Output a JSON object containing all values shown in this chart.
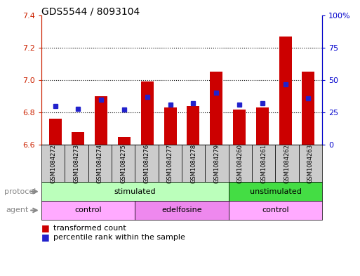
{
  "title": "GDS5544 / 8093104",
  "samples": [
    "GSM1084272",
    "GSM1084273",
    "GSM1084274",
    "GSM1084275",
    "GSM1084276",
    "GSM1084277",
    "GSM1084278",
    "GSM1084279",
    "GSM1084260",
    "GSM1084261",
    "GSM1084262",
    "GSM1084263"
  ],
  "transformed_count": [
    6.76,
    6.68,
    6.9,
    6.65,
    6.99,
    6.83,
    6.84,
    7.05,
    6.82,
    6.83,
    7.27,
    7.05
  ],
  "percentile_rank": [
    30,
    28,
    35,
    27,
    37,
    31,
    32,
    40,
    31,
    32,
    47,
    36
  ],
  "ylim_left": [
    6.6,
    7.4
  ],
  "ylim_right": [
    0,
    100
  ],
  "yticks_left": [
    6.6,
    6.8,
    7.0,
    7.2,
    7.4
  ],
  "yticks_right": [
    0,
    25,
    50,
    75,
    100
  ],
  "ytick_labels_right": [
    "0",
    "25",
    "50",
    "75",
    "100%"
  ],
  "bar_color": "#cc0000",
  "dot_color": "#2222cc",
  "protocol_groups": [
    {
      "label": "stimulated",
      "start": 0,
      "end": 7,
      "color": "#bbffbb"
    },
    {
      "label": "unstimulated",
      "start": 8,
      "end": 11,
      "color": "#44dd44"
    }
  ],
  "agent_groups": [
    {
      "label": "control",
      "start": 0,
      "end": 3,
      "color": "#ffaaff"
    },
    {
      "label": "edelfosine",
      "start": 4,
      "end": 7,
      "color": "#ee88ee"
    },
    {
      "label": "control",
      "start": 8,
      "end": 11,
      "color": "#ffaaff"
    }
  ],
  "legend_red_label": "transformed count",
  "legend_blue_label": "percentile rank within the sample",
  "left_axis_color": "#cc2200",
  "right_axis_color": "#0000cc",
  "label_color": "#888888",
  "sample_bg_color": "#cccccc"
}
